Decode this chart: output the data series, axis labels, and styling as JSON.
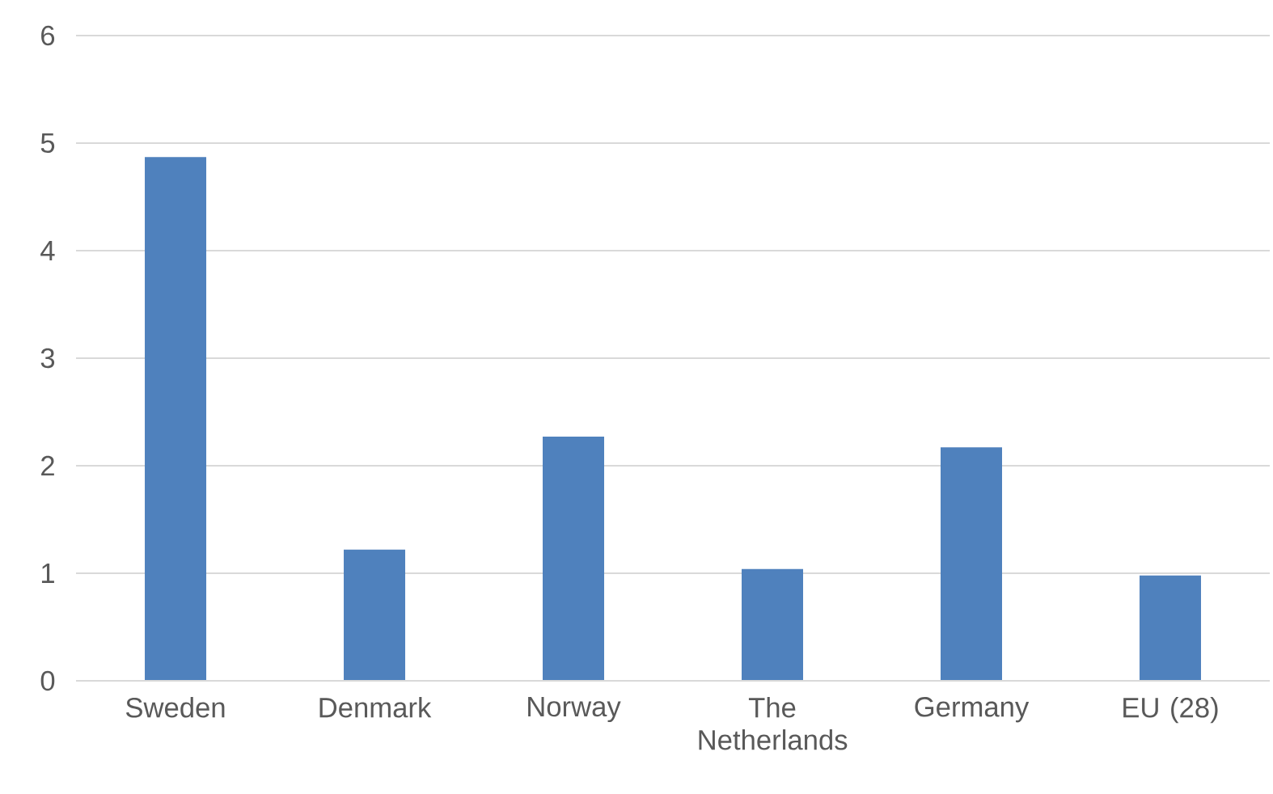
{
  "chart_data": {
    "type": "bar",
    "categories": [
      "Sweden",
      "Denmark",
      "Norway",
      "The Netherlands",
      "Germany",
      "EU (28)"
    ],
    "values": [
      4.87,
      1.22,
      2.27,
      1.04,
      2.17,
      0.98
    ],
    "color": "#4f81bd",
    "ylim": [
      0,
      6
    ],
    "yticks": [
      0,
      1,
      2,
      3,
      4,
      5,
      6
    ],
    "grid": "y"
  }
}
